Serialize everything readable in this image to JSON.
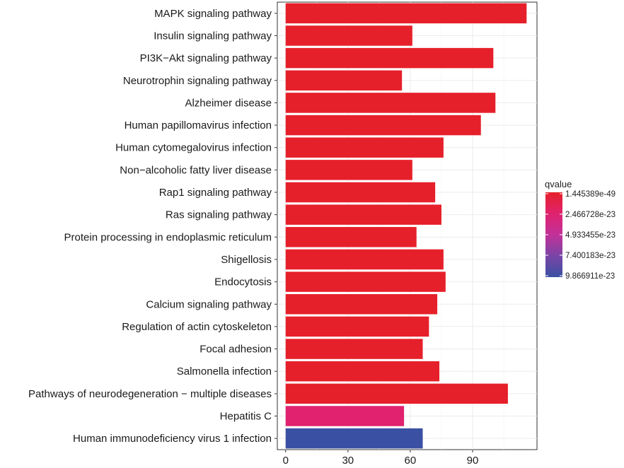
{
  "chart_data": {
    "type": "bar",
    "orientation": "horizontal",
    "categories": [
      "MAPK signaling pathway",
      "Insulin signaling pathway",
      "PI3K−Akt signaling pathway",
      "Neurotrophin signaling pathway",
      "Alzheimer disease",
      "Human papillomavirus infection",
      "Human cytomegalovirus infection",
      "Non−alcoholic fatty liver disease",
      "Rap1 signaling pathway",
      "Ras signaling pathway",
      "Protein processing in endoplasmic reticulum",
      "Shigellosis",
      "Endocytosis",
      "Calcium signaling pathway",
      "Regulation of actin cytoskeleton",
      "Focal adhesion",
      "Salmonella infection",
      "Pathways of neurodegeneration − multiple diseases",
      "Hepatitis C",
      "Human immunodeficiency virus 1 infection"
    ],
    "values": [
      116,
      61,
      100,
      56,
      101,
      94,
      76,
      61,
      72,
      75,
      63,
      76,
      77,
      73,
      69,
      66,
      74,
      107,
      57,
      66
    ],
    "qvalue_fraction": [
      0,
      0,
      0,
      0,
      0,
      0,
      0,
      0,
      0,
      0,
      0,
      0,
      0,
      0,
      0,
      0,
      0,
      0,
      0.25,
      1.0
    ],
    "xticks": [
      0,
      30,
      60,
      90
    ],
    "xlim": [
      -4,
      121
    ],
    "xlabel": "",
    "ylabel": "",
    "grid": true,
    "legend": {
      "title": "qvalue",
      "position": "right",
      "labels": [
        "1.445389e-49",
        "2.466728e-23",
        "4.933455e-23",
        "7.400183e-23",
        "9.866911e-23"
      ],
      "colors": [
        "#e6202a",
        "#e0226f",
        "#c23199",
        "#7a45a6",
        "#3a50a3"
      ]
    }
  }
}
